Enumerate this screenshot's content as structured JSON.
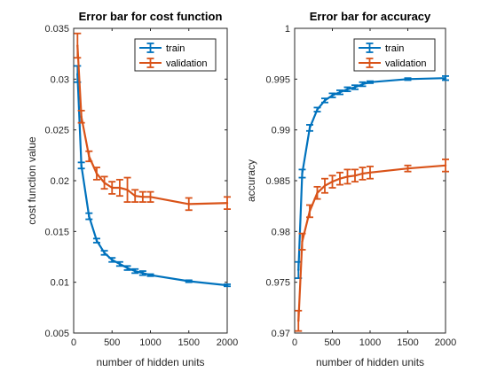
{
  "figure": {
    "background": "#ffffff"
  },
  "chart_data": [
    {
      "type": "line",
      "title": "Error bar for cost function",
      "xlabel": "number of hidden units",
      "ylabel": "cost function value",
      "xlim": [
        0,
        2000
      ],
      "ylim": [
        0.005,
        0.035
      ],
      "xticks": [
        0,
        500,
        1000,
        1500,
        2000
      ],
      "xtick_labels": [
        "0",
        "500",
        "1000",
        "1500",
        "2000"
      ],
      "yticks": [
        0.005,
        0.01,
        0.015,
        0.02,
        0.025,
        0.03,
        0.035
      ],
      "ytick_labels": [
        "0.005",
        "0.01",
        "0.015",
        "0.02",
        "0.025",
        "0.03",
        "0.035"
      ],
      "legend_position": "top-right",
      "series": [
        {
          "name": "train",
          "color": "#0072BD",
          "points": [
            {
              "x": 50,
              "y": 0.0305,
              "err": 0.0008
            },
            {
              "x": 100,
              "y": 0.0215,
              "err": 0.0003
            },
            {
              "x": 200,
              "y": 0.0165,
              "err": 0.0003
            },
            {
              "x": 300,
              "y": 0.0141,
              "err": 0.0002
            },
            {
              "x": 400,
              "y": 0.0129,
              "err": 0.0002
            },
            {
              "x": 500,
              "y": 0.0122,
              "err": 0.0002
            },
            {
              "x": 600,
              "y": 0.0118,
              "err": 0.0002
            },
            {
              "x": 700,
              "y": 0.0114,
              "err": 0.0002
            },
            {
              "x": 800,
              "y": 0.0111,
              "err": 0.0002
            },
            {
              "x": 900,
              "y": 0.0109,
              "err": 0.0002
            },
            {
              "x": 1000,
              "y": 0.0107,
              "err": 0.0001
            },
            {
              "x": 1500,
              "y": 0.0101,
              "err": 0.0001
            },
            {
              "x": 2000,
              "y": 0.0097,
              "err": 0.0001
            }
          ]
        },
        {
          "name": "validation",
          "color": "#D95319",
          "points": [
            {
              "x": 50,
              "y": 0.0333,
              "err": 0.0012
            },
            {
              "x": 100,
              "y": 0.0263,
              "err": 0.0006
            },
            {
              "x": 200,
              "y": 0.0224,
              "err": 0.0005
            },
            {
              "x": 300,
              "y": 0.0207,
              "err": 0.0006
            },
            {
              "x": 400,
              "y": 0.0198,
              "err": 0.0006
            },
            {
              "x": 500,
              "y": 0.0193,
              "err": 0.0006
            },
            {
              "x": 600,
              "y": 0.0193,
              "err": 0.0008
            },
            {
              "x": 700,
              "y": 0.0191,
              "err": 0.0012
            },
            {
              "x": 800,
              "y": 0.0185,
              "err": 0.0006
            },
            {
              "x": 900,
              "y": 0.0184,
              "err": 0.0005
            },
            {
              "x": 1000,
              "y": 0.0184,
              "err": 0.0005
            },
            {
              "x": 1500,
              "y": 0.0177,
              "err": 0.0006
            },
            {
              "x": 2000,
              "y": 0.0178,
              "err": 0.0006
            }
          ]
        }
      ]
    },
    {
      "type": "line",
      "title": "Error bar for accuracy",
      "xlabel": "number of hidden units",
      "ylabel": "accuracy",
      "xlim": [
        0,
        2000
      ],
      "ylim": [
        0.97,
        1
      ],
      "xticks": [
        0,
        500,
        1000,
        1500,
        2000
      ],
      "xtick_labels": [
        "0",
        "500",
        "1000",
        "1500",
        "2000"
      ],
      "yticks": [
        0.97,
        0.975,
        0.98,
        0.985,
        0.99,
        0.995,
        1
      ],
      "ytick_labels": [
        "0.97",
        "0.975",
        "0.98",
        "0.985",
        "0.99",
        "0.995",
        "1"
      ],
      "legend_position": "top-right",
      "series": [
        {
          "name": "train",
          "color": "#0072BD",
          "points": [
            {
              "x": 50,
              "y": 0.9762,
              "err": 0.0008
            },
            {
              "x": 100,
              "y": 0.9857,
              "err": 0.0004
            },
            {
              "x": 200,
              "y": 0.9902,
              "err": 0.0003
            },
            {
              "x": 300,
              "y": 0.992,
              "err": 0.0002
            },
            {
              "x": 400,
              "y": 0.9929,
              "err": 0.0002
            },
            {
              "x": 500,
              "y": 0.9934,
              "err": 0.0002
            },
            {
              "x": 600,
              "y": 0.9937,
              "err": 0.0002
            },
            {
              "x": 700,
              "y": 0.994,
              "err": 0.0002
            },
            {
              "x": 800,
              "y": 0.9942,
              "err": 0.0002
            },
            {
              "x": 900,
              "y": 0.9945,
              "err": 0.0002
            },
            {
              "x": 1000,
              "y": 0.9947,
              "err": 0.0001
            },
            {
              "x": 1500,
              "y": 0.995,
              "err": 0.0001
            },
            {
              "x": 2000,
              "y": 0.9951,
              "err": 0.0002
            }
          ]
        },
        {
          "name": "validation",
          "color": "#D95319",
          "points": [
            {
              "x": 50,
              "y": 0.9712,
              "err": 0.001
            },
            {
              "x": 100,
              "y": 0.979,
              "err": 0.0008
            },
            {
              "x": 200,
              "y": 0.982,
              "err": 0.0006
            },
            {
              "x": 300,
              "y": 0.9838,
              "err": 0.0006
            },
            {
              "x": 400,
              "y": 0.9845,
              "err": 0.0007
            },
            {
              "x": 500,
              "y": 0.9849,
              "err": 0.0006
            },
            {
              "x": 600,
              "y": 0.9852,
              "err": 0.0006
            },
            {
              "x": 700,
              "y": 0.9854,
              "err": 0.0007
            },
            {
              "x": 800,
              "y": 0.9855,
              "err": 0.0006
            },
            {
              "x": 900,
              "y": 0.9857,
              "err": 0.0006
            },
            {
              "x": 1000,
              "y": 0.9858,
              "err": 0.0006
            },
            {
              "x": 1500,
              "y": 0.9862,
              "err": 0.0003
            },
            {
              "x": 2000,
              "y": 0.9865,
              "err": 0.0006
            }
          ]
        }
      ]
    }
  ]
}
